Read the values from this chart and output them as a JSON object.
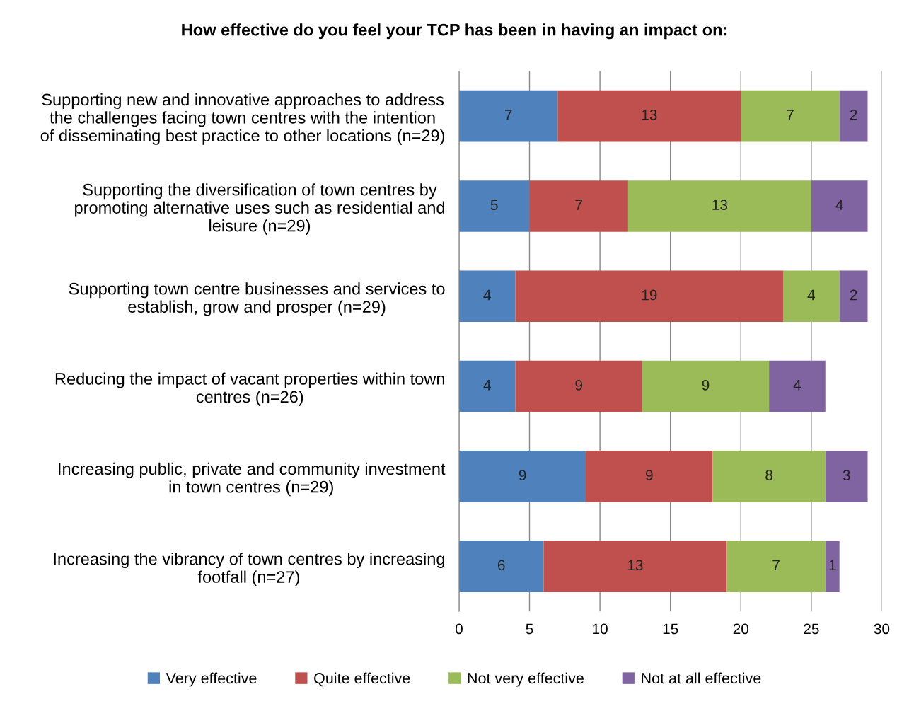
{
  "chart_data": {
    "type": "bar",
    "orientation": "horizontal",
    "stacked": true,
    "title": "How effective do you feel your TCP has been in having an impact on:",
    "categories": [
      "Supporting new and innovative approaches to address\nthe challenges facing town centres with the intention\nof disseminating best practice to other locations (n=29)",
      "Supporting the diversification of town centres by\npromoting alternative uses such as residential and\nleisure (n=29)",
      "Supporting town centre businesses and services to\nestablish, grow and prosper (n=29)",
      "Reducing the impact of vacant properties within town\ncentres (n=26)",
      "Increasing public, private and community investment\nin town centres (n=29)",
      "Increasing the vibrancy of town centres by increasing\nfootfall (n=27)"
    ],
    "series": [
      {
        "name": "Very effective",
        "color": "#4f81bd",
        "values": [
          7,
          5,
          4,
          4,
          9,
          6
        ]
      },
      {
        "name": "Quite effective",
        "color": "#c0504d",
        "values": [
          13,
          7,
          19,
          9,
          9,
          13
        ]
      },
      {
        "name": "Not very effective",
        "color": "#9bbb59",
        "values": [
          7,
          13,
          4,
          9,
          8,
          7
        ]
      },
      {
        "name": "Not at all effective",
        "color": "#8064a2",
        "values": [
          2,
          4,
          2,
          4,
          3,
          1
        ]
      }
    ],
    "xlim": [
      0,
      30
    ],
    "xticks": [
      0,
      5,
      10,
      15,
      20,
      25,
      30
    ],
    "grid": "x",
    "legend": "bottom",
    "data_labels": true
  }
}
